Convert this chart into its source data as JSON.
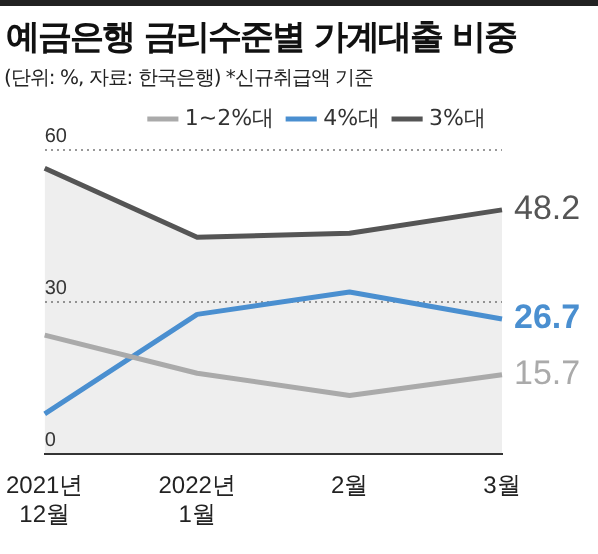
{
  "chart_data": {
    "type": "line",
    "title": "예금은행 금리수준별 가계대출 비중",
    "subtitle": "(단위: %, 자료: 한국은행) *신규취급액 기준",
    "categories": [
      "2021년 12월",
      "2022년 1월",
      "2월",
      "3월"
    ],
    "series": [
      {
        "name": "1~2%대",
        "color": "#aaaaaa",
        "values": [
          23.5,
          16,
          11.6,
          15.7
        ],
        "value_labels": [
          null,
          null,
          null,
          "15.7"
        ]
      },
      {
        "name": "3%대",
        "type": "area",
        "color": "#555555",
        "values": [
          56.4,
          42.8,
          43.6,
          48.2
        ],
        "value_labels": [
          null,
          null,
          null,
          "48.2"
        ]
      },
      {
        "name": "4%대",
        "color": "#4a8fd0",
        "values": [
          8,
          27.6,
          32,
          26.7
        ],
        "value_labels": [
          null,
          null,
          null,
          "26.7"
        ]
      }
    ],
    "ylim": [
      0,
      60
    ],
    "yticks": [
      0,
      30,
      60
    ],
    "grid": "y",
    "legend": "top right",
    "marker": "none",
    "line_style": "solid"
  }
}
